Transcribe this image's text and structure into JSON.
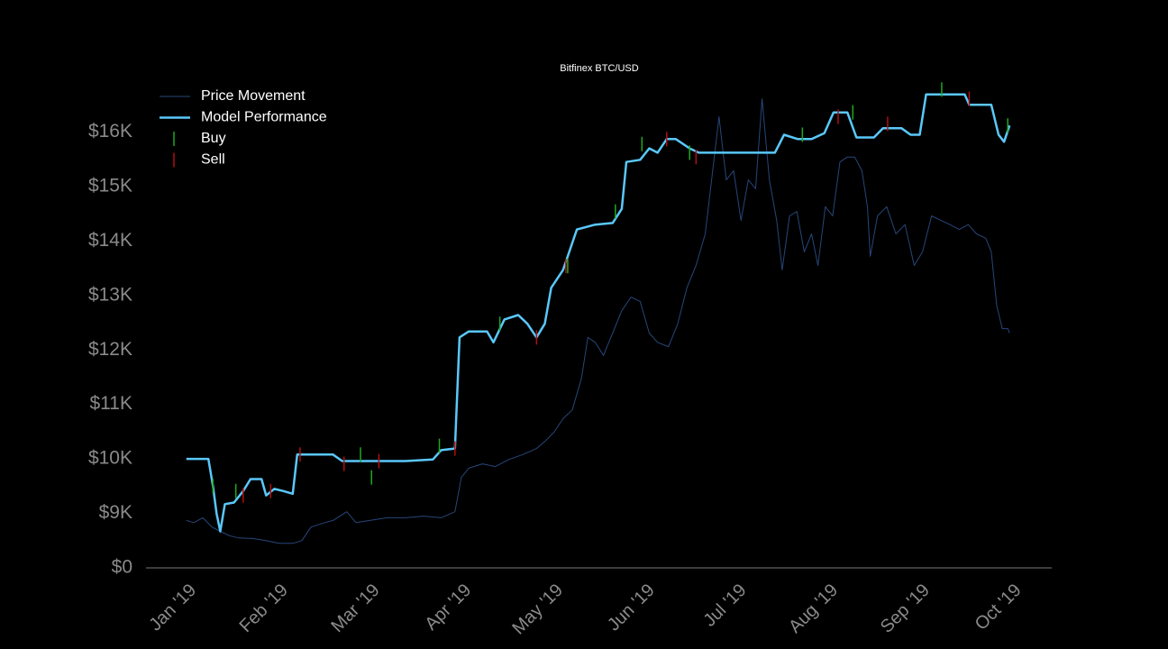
{
  "chart_data": {
    "type": "line",
    "title": "Bitfinex BTC/USD",
    "xlim": [
      -0.52,
      9.36
    ],
    "xticks": [
      {
        "value": 0,
        "label": "Jan '19"
      },
      {
        "value": 1,
        "label": "Feb '19"
      },
      {
        "value": 2,
        "label": "Mar '19"
      },
      {
        "value": 3,
        "label": "Apr '19"
      },
      {
        "value": 4,
        "label": "May '19"
      },
      {
        "value": 5,
        "label": "Jun '19"
      },
      {
        "value": 6,
        "label": "Jul '19"
      },
      {
        "value": 7,
        "label": "Aug '19"
      },
      {
        "value": 8,
        "label": "Sep '19"
      },
      {
        "value": 9,
        "label": "Oct '19"
      }
    ],
    "ylim": [
      0,
      17000
    ],
    "axis_break": [
      0,
      8000
    ],
    "yticks": [
      {
        "value": 0,
        "label": "$0"
      },
      {
        "value": 9000,
        "label": "$9K"
      },
      {
        "value": 10000,
        "label": "$10K"
      },
      {
        "value": 11000,
        "label": "$11K"
      },
      {
        "value": 12000,
        "label": "$12K"
      },
      {
        "value": 13000,
        "label": "$13K"
      },
      {
        "value": 14000,
        "label": "$14K"
      },
      {
        "value": 15000,
        "label": "$15K"
      },
      {
        "value": 16000,
        "label": "$16K"
      }
    ],
    "legend": "upper left",
    "series": [
      {
        "name": "Price Movement",
        "color": "#27467a",
        "mark": "line",
        "width": 1,
        "x": [
          -0.08,
          0,
          0.1,
          0.2,
          0.29,
          0.39,
          0.49,
          0.64,
          0.79,
          0.93,
          1.08,
          1.18,
          1.28,
          1.43,
          1.52,
          1.67,
          1.77,
          1.92,
          2.11,
          2.31,
          2.51,
          2.7,
          2.85,
          2.92,
          3.0,
          3.15,
          3.29,
          3.44,
          3.59,
          3.74,
          3.83,
          3.93,
          4.03,
          4.13,
          4.23,
          4.3,
          4.38,
          4.47,
          4.57,
          4.67,
          4.77,
          4.87,
          4.97,
          5.06,
          5.18,
          5.28,
          5.38,
          5.48,
          5.58,
          5.65,
          5.73,
          5.81,
          5.89,
          5.97,
          6.05,
          6.13,
          6.2,
          6.28,
          6.36,
          6.42,
          6.5,
          6.58,
          6.66,
          6.74,
          6.81,
          6.89,
          6.97,
          7.05,
          7.13,
          7.21,
          7.29,
          7.35,
          7.38,
          7.46,
          7.56,
          7.66,
          7.76,
          7.86,
          7.95,
          8.05,
          8.15,
          8.25,
          8.35,
          8.45,
          8.54,
          8.64,
          8.7,
          8.76,
          8.82,
          8.88,
          8.9
        ],
        "values": [
          8870,
          8830,
          8920,
          8750,
          8670,
          8590,
          8550,
          8540,
          8500,
          8450,
          8450,
          8500,
          8750,
          8830,
          8870,
          9030,
          8830,
          8870,
          8920,
          8920,
          8950,
          8920,
          9030,
          9660,
          9830,
          9910,
          9860,
          9990,
          10080,
          10190,
          10320,
          10490,
          10740,
          10900,
          11480,
          12230,
          12140,
          11900,
          12310,
          12720,
          12970,
          12890,
          12310,
          12140,
          12060,
          12480,
          13140,
          13550,
          14130,
          15120,
          16280,
          15120,
          15290,
          14380,
          15120,
          14960,
          16610,
          15120,
          14380,
          13470,
          14460,
          14540,
          13800,
          14130,
          13550,
          14630,
          14460,
          15450,
          15540,
          15540,
          15290,
          14630,
          13720,
          14460,
          14630,
          14130,
          14300,
          13550,
          13800,
          14460,
          14380,
          14300,
          14210,
          14300,
          14130,
          14050,
          13800,
          12810,
          12390,
          12390,
          12310
        ]
      },
      {
        "name": "Model Performance",
        "color": "#5ac8fa",
        "mark": "line",
        "width": 2.5,
        "x": [
          -0.08,
          0.16,
          0.21,
          0.25,
          0.29,
          0.34,
          0.44,
          0.54,
          0.62,
          0.74,
          0.79,
          0.88,
          0.98,
          1.08,
          1.13,
          1.52,
          1.62,
          1.82,
          2.02,
          2.31,
          2.61,
          2.7,
          2.85,
          2.9,
          3.0,
          3.2,
          3.27,
          3.39,
          3.54,
          3.64,
          3.74,
          3.83,
          3.9,
          4.03,
          4.18,
          4.38,
          4.57,
          4.67,
          4.72,
          4.87,
          4.97,
          5.06,
          5.16,
          5.26,
          5.41,
          5.51,
          5.75,
          6.05,
          6.34,
          6.44,
          6.59,
          6.74,
          6.88,
          6.98,
          7.13,
          7.23,
          7.42,
          7.52,
          7.72,
          7.82,
          7.92,
          7.99,
          8.21,
          8.41,
          8.46,
          8.7,
          8.78,
          8.84,
          8.9
        ],
        "values": [
          10000,
          10000,
          9500,
          9000,
          8670,
          9170,
          9200,
          9410,
          9630,
          9630,
          9330,
          9450,
          9410,
          9360,
          10080,
          10080,
          9960,
          9960,
          9960,
          9960,
          9990,
          10160,
          10190,
          12230,
          12340,
          12340,
          12140,
          12560,
          12640,
          12480,
          12230,
          12480,
          13140,
          13470,
          14210,
          14300,
          14330,
          14590,
          15450,
          15490,
          15700,
          15620,
          15870,
          15870,
          15700,
          15620,
          15620,
          15620,
          15620,
          15950,
          15870,
          15870,
          15980,
          16360,
          16360,
          15900,
          15900,
          16070,
          16070,
          15950,
          15950,
          16690,
          16690,
          16690,
          16500,
          16500,
          15950,
          15820,
          16120
        ]
      },
      {
        "name": "Buy",
        "color": "#1fa81f",
        "mark": "tick",
        "x": [
          0.21,
          0.46,
          1.82,
          1.94,
          2.68,
          3.34,
          4.08,
          4.6,
          4.89,
          5.41,
          6.64,
          7.19,
          8.16,
          8.88
        ],
        "values": [
          9500,
          9410,
          10080,
          9660,
          10240,
          12480,
          13540,
          14540,
          15780,
          15620,
          15950,
          16360,
          16780,
          16120
        ]
      },
      {
        "name": "Sell",
        "color": "#b01010",
        "mark": "tick",
        "x": [
          0.54,
          0.84,
          1.16,
          1.64,
          2.02,
          2.85,
          3.74,
          4.06,
          5.16,
          5.48,
          7.03,
          7.57,
          8.46
        ],
        "values": [
          9330,
          9410,
          10080,
          9910,
          9960,
          10190,
          12230,
          13540,
          15870,
          15540,
          16280,
          16150,
          16610
        ]
      }
    ]
  }
}
